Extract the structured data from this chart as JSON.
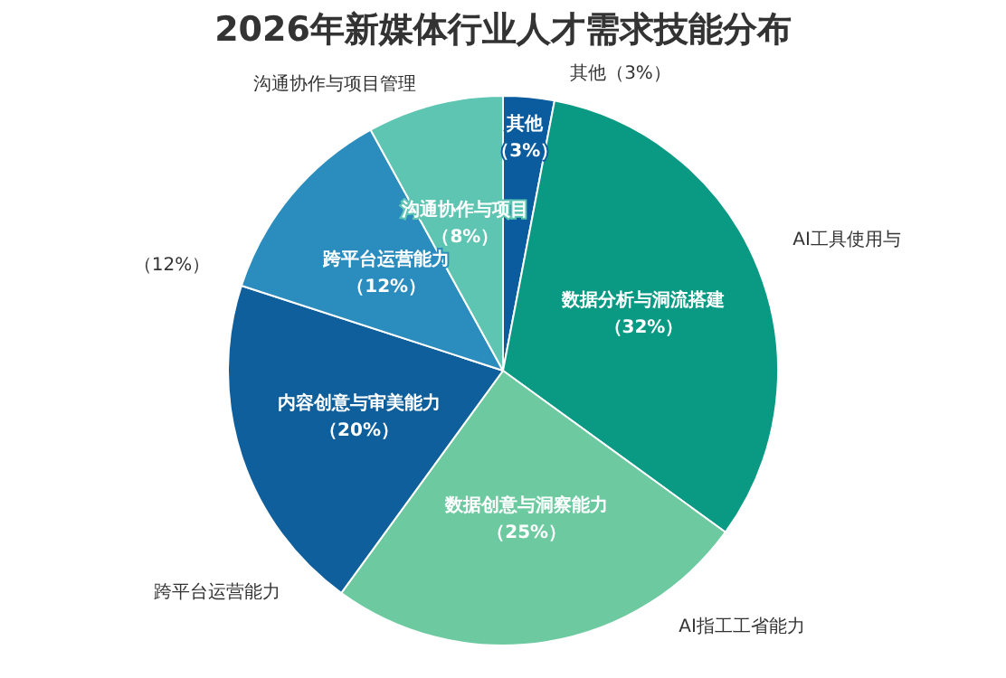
{
  "chart_data": {
    "type": "pie",
    "title": "2026年新媒体行业人才需求技能分布",
    "categories": [
      "其他",
      "数据分析与洞流搭建",
      "数据创意与洞察能力",
      "内容创意与审美能力",
      "跨平台运营能力",
      "沟通协作与项目"
    ],
    "values": [
      3,
      32,
      25,
      20,
      12,
      8
    ],
    "colors": [
      "#0b5c9e",
      "#0a9a84",
      "#6dcaa0",
      "#0e5f9b",
      "#2b8cbe",
      "#5dc5b1"
    ],
    "value_labels": [
      "（3%）",
      "（32%）",
      "（25%）",
      "（20%）",
      "（12%）",
      "（8%）"
    ],
    "legend": false,
    "annotations": [
      "沟通协作与项目管理",
      "其他（3%）",
      "AI工具使用与",
      "（12%）",
      "跨平台运营能力",
      "AI指工工省能力"
    ]
  }
}
